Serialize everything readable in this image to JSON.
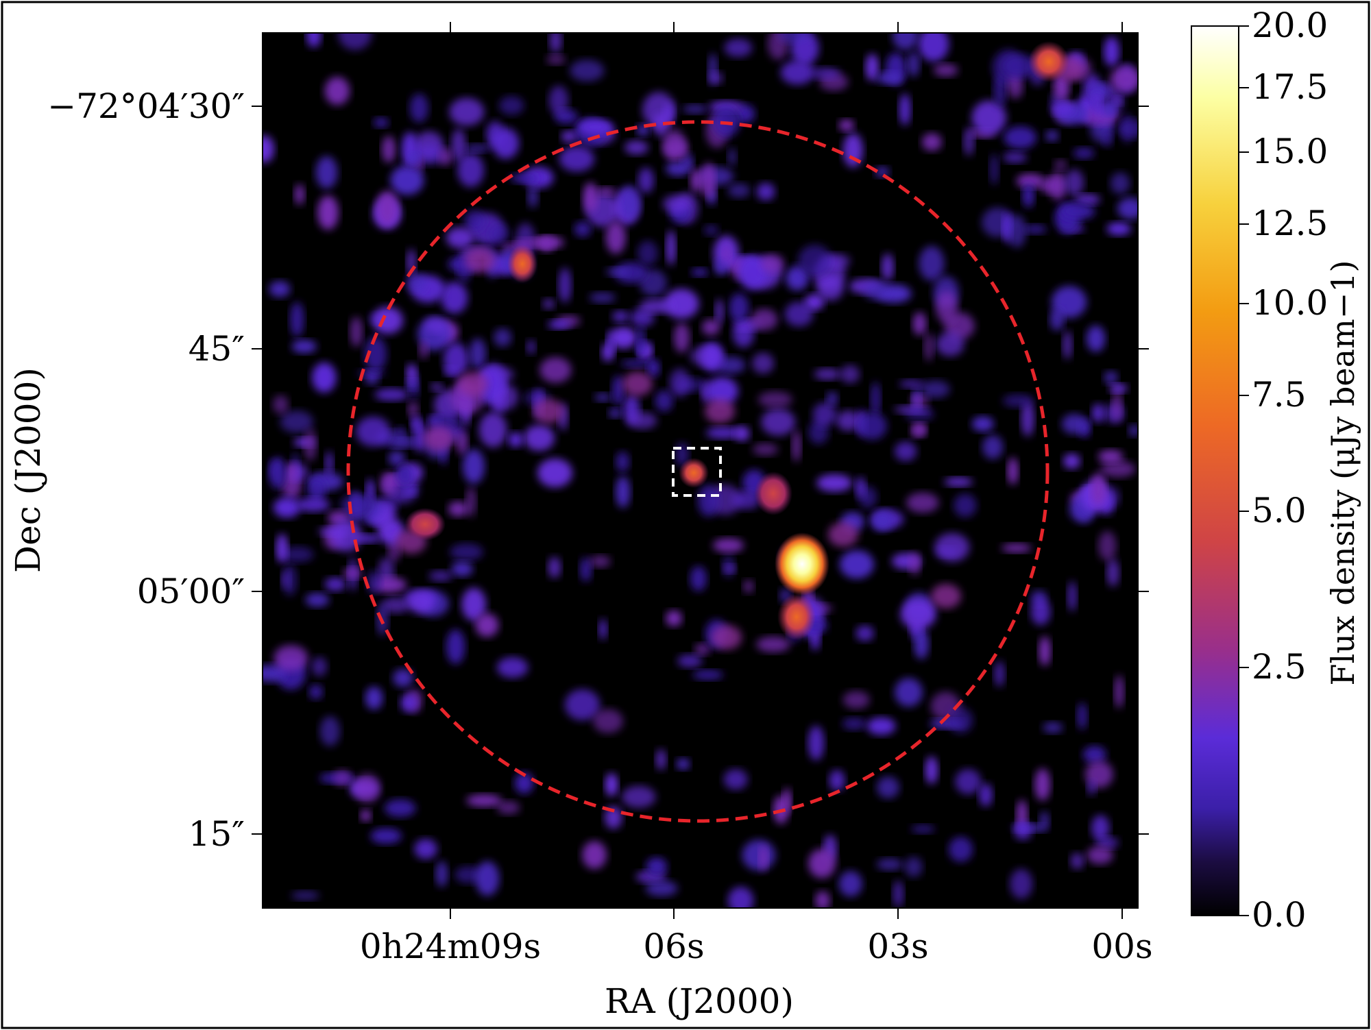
{
  "colors": {
    "background": "#000000",
    "frame": "#000000",
    "circle": "#e8252b",
    "box": "#ffffff",
    "colormap": [
      "#000000",
      "#1b0c41",
      "#4a0c6b",
      "#5b2cd8",
      "#781c6d",
      "#a52c60",
      "#cf4446",
      "#ed6925",
      "#fb9b06",
      "#f7d13d",
      "#fcffa4",
      "#ffffff"
    ]
  },
  "axes": {
    "x_label": "RA (J2000)",
    "y_label": "Dec (J2000)",
    "x_ticks": [
      "0h24m09s",
      "06s",
      "03s",
      "00s"
    ],
    "y_ticks": [
      "−72°04′30″",
      "45″",
      "05′00″",
      "15″"
    ]
  },
  "colorbar": {
    "label": "Flux density (μJy beam−1)",
    "ticks": [
      "20.0",
      "17.5",
      "15.0",
      "12.5",
      "10.0",
      "7.5",
      "5.0",
      "2.5",
      "0.0"
    ],
    "min": 0.0,
    "max": 20.0,
    "scale": "nonlinear"
  },
  "overlays": {
    "circle": "dashed circle",
    "box": "dashed square"
  }
}
